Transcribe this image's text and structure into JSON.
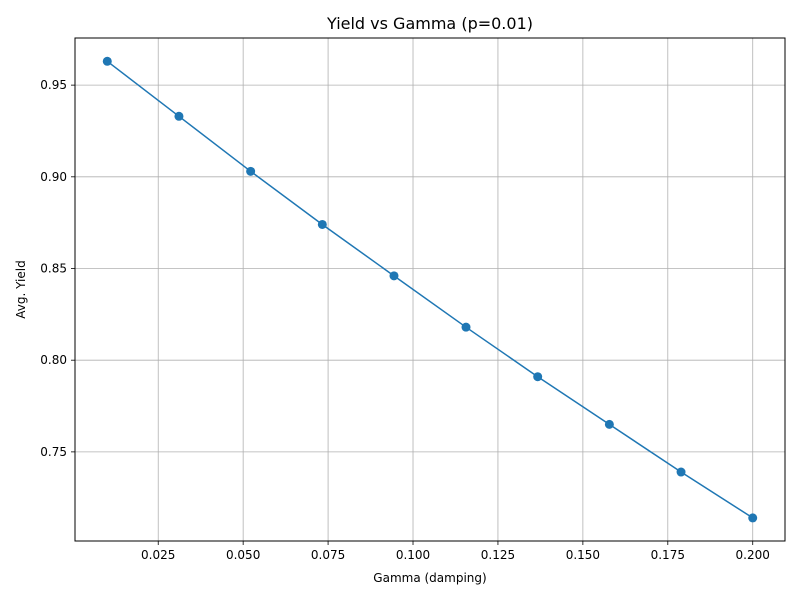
{
  "chart_data": {
    "type": "line",
    "title": "Yield vs Gamma (p=0.01)",
    "xlabel": "Gamma (damping)",
    "ylabel": "Avg. Yield",
    "xlim": [
      0.0005,
      0.2095
    ],
    "ylim": [
      0.7014,
      0.9757
    ],
    "x_ticks": [
      0.025,
      0.05,
      0.075,
      0.1,
      0.125,
      0.15,
      0.175,
      0.2
    ],
    "x_tick_labels": [
      "0.025",
      "0.050",
      "0.075",
      "0.100",
      "0.125",
      "0.150",
      "0.175",
      "0.200"
    ],
    "y_ticks": [
      0.75,
      0.8,
      0.85,
      0.9,
      0.95
    ],
    "y_tick_labels": [
      "0.75",
      "0.80",
      "0.85",
      "0.90",
      "0.95"
    ],
    "grid": true,
    "series": [
      {
        "color": "#1f77b4",
        "marker": "circle",
        "x": [
          0.01,
          0.0311,
          0.0522,
          0.0733,
          0.0944,
          0.1156,
          0.1367,
          0.1578,
          0.1789,
          0.2
        ],
        "y": [
          0.963,
          0.933,
          0.903,
          0.874,
          0.846,
          0.818,
          0.791,
          0.765,
          0.739,
          0.714
        ]
      }
    ]
  }
}
